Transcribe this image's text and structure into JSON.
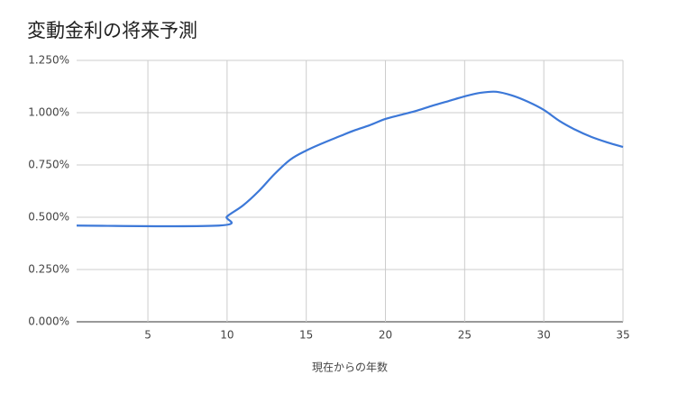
{
  "chart_data": {
    "type": "line",
    "title": "変動金利の将来予測",
    "x_label": "現在からの年数",
    "x": [
      0.5,
      9.5,
      10,
      11,
      12,
      13,
      14,
      15,
      16,
      17,
      18,
      19,
      20,
      21,
      22,
      23,
      24,
      25,
      26,
      27,
      28,
      29,
      30,
      31,
      32,
      33,
      34,
      35
    ],
    "series": [
      {
        "color": "#3c78d8",
        "values": [
          0.46,
          0.46,
          0.504,
          0.556,
          0.625,
          0.707,
          0.776,
          0.819,
          0.853,
          0.884,
          0.914,
          0.94,
          0.97,
          0.99,
          1.01,
          1.034,
          1.056,
          1.078,
          1.095,
          1.1,
          1.082,
          1.052,
          1.013,
          0.96,
          0.918,
          0.884,
          0.858,
          0.836
        ]
      }
    ],
    "xlim": [
      0.5,
      35
    ],
    "xticks": [
      5,
      10,
      15,
      20,
      25,
      30,
      35
    ],
    "ylim": [
      0,
      1.25
    ],
    "yticks": [
      {
        "value": 0,
        "label": "0.000%"
      },
      {
        "value": 0.25,
        "label": "0.250%"
      },
      {
        "value": 0.5,
        "label": "0.500%"
      },
      {
        "value": 0.75,
        "label": "0.750%"
      },
      {
        "value": 1,
        "label": "1.000%"
      },
      {
        "value": 1.25,
        "label": "1.250%"
      }
    ],
    "grid": true
  }
}
